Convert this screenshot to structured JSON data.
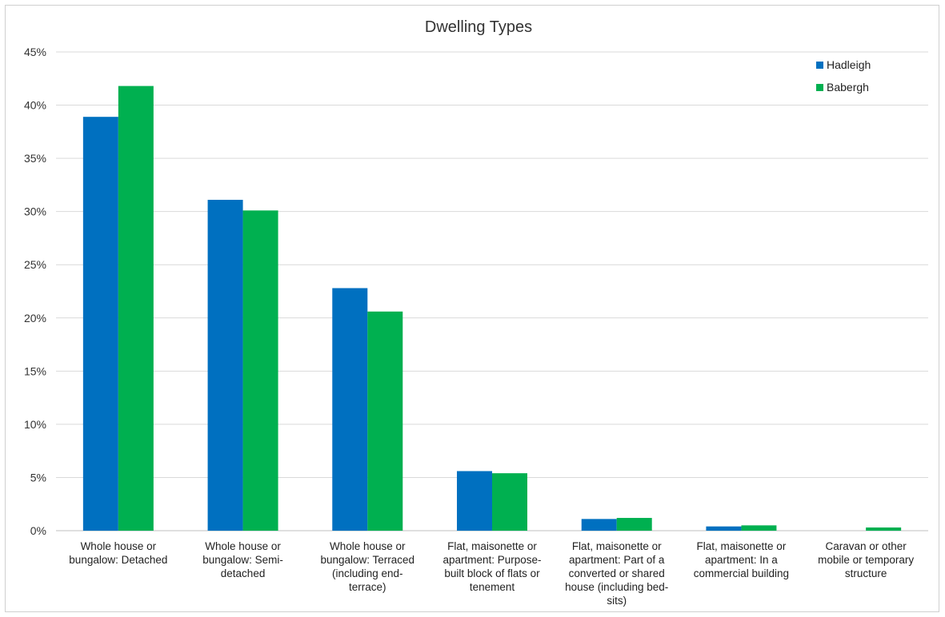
{
  "chart_data": {
    "type": "bar",
    "title": "Dwelling Types",
    "xlabel": "",
    "ylabel": "",
    "ylim": [
      0,
      45
    ],
    "y_ticks": [
      "0%",
      "5%",
      "10%",
      "15%",
      "20%",
      "25%",
      "30%",
      "35%",
      "40%",
      "45%"
    ],
    "grid": true,
    "legend_position": "top-right",
    "categories": [
      [
        "Whole house or",
        "bungalow: Detached"
      ],
      [
        "Whole house or",
        "bungalow: Semi-",
        "detached"
      ],
      [
        "Whole house or",
        "bungalow: Terraced",
        "(including end-",
        "terrace)"
      ],
      [
        "Flat, maisonette or",
        "apartment: Purpose-",
        "built block of flats or",
        "tenement"
      ],
      [
        "Flat, maisonette or",
        "apartment: Part of a",
        "converted or shared",
        "house (including bed-",
        "sits)"
      ],
      [
        "Flat, maisonette or",
        "apartment: In a",
        "commercial building"
      ],
      [
        "Caravan or other",
        "mobile or temporary",
        "structure"
      ]
    ],
    "series": [
      {
        "name": "Hadleigh",
        "color": "#0070C0",
        "values": [
          38.9,
          31.1,
          22.8,
          5.6,
          1.1,
          0.4,
          0.0
        ]
      },
      {
        "name": "Babergh",
        "color": "#00B050",
        "values": [
          41.8,
          30.1,
          20.6,
          5.4,
          1.2,
          0.5,
          0.3
        ]
      }
    ]
  }
}
